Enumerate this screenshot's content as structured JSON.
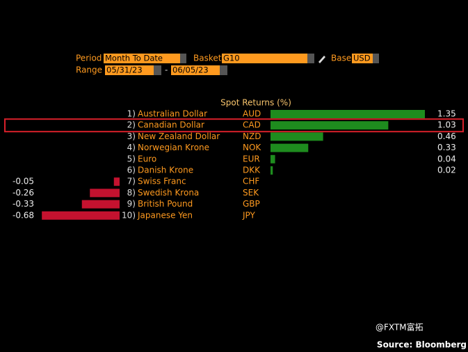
{
  "controls": {
    "period_label": "Period",
    "period": "Month To Date",
    "basket_label": "Basket",
    "basket": "G10",
    "base_label": "Base",
    "base": "USD",
    "range_label": "Range",
    "start": "05/31/23",
    "separator": "-",
    "end": "06/05/23"
  },
  "chart_data": {
    "type": "bar",
    "title": "Spot Returns (%)",
    "ranks": [
      "1)",
      "2)",
      "3)",
      "4)",
      "5)",
      "6)",
      "7)",
      "8)",
      "9)",
      "10)"
    ],
    "categories": [
      "Australian Dollar",
      "Canadian Dollar",
      "New Zealand Dollar",
      "Norwegian Krone",
      "Euro",
      "Danish Krone",
      "Swiss Franc",
      "Swedish Krona",
      "British Pound",
      "Japanese Yen"
    ],
    "codes": [
      "AUD",
      "CAD",
      "NZD",
      "NOK",
      "EUR",
      "DKK",
      "CHF",
      "SEK",
      "GBP",
      "JPY"
    ],
    "values": [
      1.35,
      1.03,
      0.46,
      0.33,
      0.04,
      0.02,
      -0.05,
      -0.26,
      -0.33,
      -0.68
    ],
    "positive_color": "#1e8c1e",
    "negative_color": "#c4122f",
    "highlight": 1
  },
  "watermark": "@FXTM富拓",
  "source": "Source: Bloomberg"
}
